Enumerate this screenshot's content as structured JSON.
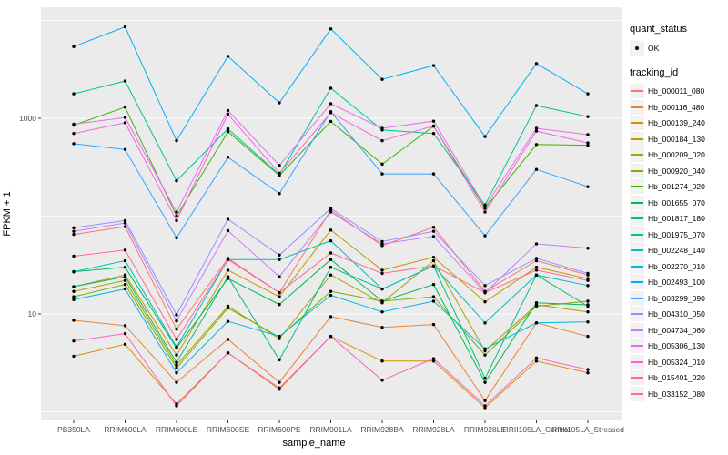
{
  "chart_data": {
    "type": "line",
    "title": "",
    "xlabel": "sample_name",
    "ylabel": "FPKM + 1",
    "yscale": "log10",
    "grid": true,
    "panel_bg": "#EBEBEB",
    "gridline_color": "#FFFFFF",
    "point_color": "#000000",
    "axis_text_color": "#4D4D4D",
    "ylim": [
      0.82,
      13600
    ],
    "yticks": [
      10,
      1000
    ],
    "ytick_labels": [
      "10",
      "1000"
    ],
    "minor_gridlines": [
      1,
      100,
      10000
    ],
    "legend_position": "right",
    "categories": [
      "PB350LA",
      "RRIM600LA",
      "RRIM600LE",
      "RRIM600SE",
      "RRIM600PE",
      "RRIM901LA",
      "RRIM928BA",
      "RRIM928LA",
      "RRIM928LE",
      "RRII105LA_Control",
      "RRII105LA_Stressed"
    ],
    "series": [
      {
        "name": "Hb_000011_080",
        "color": "#F8766D",
        "values": [
          65,
          78,
          7.0,
          37,
          16.5,
          115,
          50,
          77,
          17,
          35,
          25
        ]
      },
      {
        "name": "Hb_000116_480",
        "color": "#EA8331",
        "values": [
          8.6,
          7.6,
          2.0,
          5.5,
          2.0,
          9.4,
          7.3,
          7.8,
          1.3,
          8.1,
          5.9
        ]
      },
      {
        "name": "Hb_000139_240",
        "color": "#D89000",
        "values": [
          3.7,
          4.9,
          1.2,
          4.0,
          1.7,
          5.9,
          3.3,
          3.3,
          1.1,
          3.3,
          2.5
        ]
      },
      {
        "name": "Hb_000184_130",
        "color": "#C09B00",
        "values": [
          19,
          25,
          3.8,
          28,
          15,
          72,
          28,
          38,
          13.3,
          30,
          23
        ]
      },
      {
        "name": "Hb_000209_020",
        "color": "#A3A500",
        "values": [
          17,
          22,
          3.0,
          12,
          5.6,
          25,
          13,
          35,
          4.2,
          12.4,
          10.5
        ]
      },
      {
        "name": "Hb_000920_040",
        "color": "#7CAE00",
        "values": [
          15,
          20,
          2.8,
          11.5,
          5.8,
          17,
          13.5,
          15,
          3.8,
          12,
          13.5
        ]
      },
      {
        "name": "Hb_001274_020",
        "color": "#39B600",
        "values": [
          850,
          1300,
          100,
          730,
          260,
          930,
          340,
          830,
          120,
          540,
          530
        ]
      },
      {
        "name": "Hb_001655_070",
        "color": "#00BB4E",
        "values": [
          27,
          30,
          4.5,
          23,
          12.5,
          36,
          13.5,
          20,
          2.0,
          13,
          12.4
        ]
      },
      {
        "name": "Hb_001817_180",
        "color": "#00BF7D",
        "values": [
          19,
          24,
          3.2,
          24,
          3.4,
          30,
          18,
          31,
          2.2,
          25,
          12
        ]
      },
      {
        "name": "Hb_001975_070",
        "color": "#00C1A3",
        "values": [
          1780,
          2400,
          230,
          780,
          265,
          2030,
          760,
          700,
          130,
          1350,
          1040
        ]
      },
      {
        "name": "Hb_002248_140",
        "color": "#00BFC4",
        "values": [
          27,
          35,
          4.6,
          36,
          36,
          56,
          18,
          31,
          8.1,
          25,
          19.5
        ]
      },
      {
        "name": "Hb_002270_010",
        "color": "#00BAE0",
        "values": [
          14,
          18,
          2.5,
          8.4,
          5.9,
          15.5,
          10.5,
          13.5,
          4.4,
          8.1,
          8.3
        ]
      },
      {
        "name": "Hb_002493_100",
        "color": "#00B0F6",
        "values": [
          5400,
          8600,
          590,
          4300,
          1440,
          8200,
          2500,
          3460,
          650,
          3630,
          1780
        ]
      },
      {
        "name": "Hb_003299_090",
        "color": "#35A2FF",
        "values": [
          550,
          480,
          60,
          400,
          170,
          1170,
          270,
          270,
          63,
          300,
          200
        ]
      },
      {
        "name": "Hb_004310_050",
        "color": "#9590FF",
        "values": [
          76,
          90,
          9.8,
          93,
          40,
          120,
          55,
          70,
          19.5,
          37,
          26
        ]
      },
      {
        "name": "Hb_004734_060",
        "color": "#C77CFF",
        "values": [
          70,
          85,
          8.5,
          71,
          24,
          110,
          52,
          62,
          16.5,
          52,
          47
        ]
      },
      {
        "name": "Hb_005306_130",
        "color": "#E76BF3",
        "values": [
          870,
          1020,
          110,
          1200,
          330,
          1410,
          790,
          935,
          125,
          790,
          680
        ]
      },
      {
        "name": "Hb_005324_010",
        "color": "#FA62DB",
        "values": [
          700,
          900,
          90,
          1100,
          275,
          1140,
          590,
          835,
          110,
          740,
          560
        ]
      },
      {
        "name": "Hb_015401_020",
        "color": "#FF62BC",
        "values": [
          5.3,
          6.3,
          1.15,
          4.0,
          1.75,
          5.9,
          2.1,
          3.5,
          1.15,
          3.55,
          2.7
        ]
      },
      {
        "name": "Hb_033152_080",
        "color": "#FF6A98",
        "values": [
          39,
          45,
          5.5,
          36,
          16.5,
          42,
          26,
          31,
          16.5,
          28,
          22
        ]
      }
    ],
    "legend": {
      "quant_title": "quant_status",
      "quant_items": [
        {
          "label": "OK",
          "marker": "point"
        }
      ],
      "series_title": "tracking_id"
    }
  }
}
